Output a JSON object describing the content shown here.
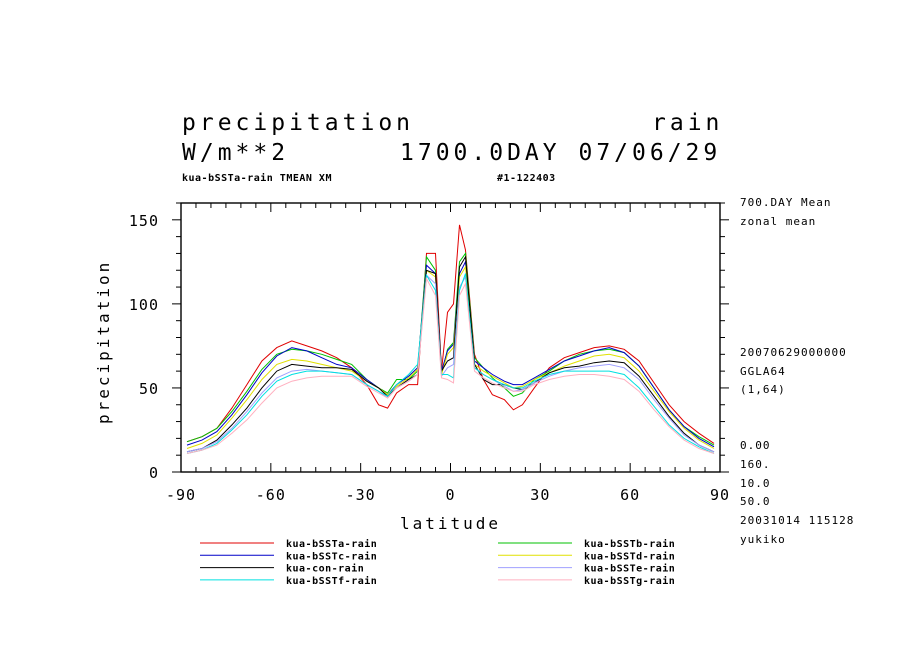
{
  "header": {
    "title_left": "precipitation",
    "title_right": "rain",
    "units": "W/m**2",
    "time_info": "1700.0DAY 07/06/29",
    "exp_label": "kua-bSSTa-rain TMEAN XM",
    "run_id": "#1-122403"
  },
  "side_info": {
    "mean_label": "700.DAY Mean",
    "mean_kind": "zonal mean",
    "date_code": "20070629000000",
    "grid": "GGLA64",
    "grid_index": "(1,64)",
    "range_min": "0.00",
    "range_max": "160.",
    "interval_1": "10.0",
    "interval_2": "50.0",
    "timestamp": "20031014 115128",
    "user": "yukiko"
  },
  "chart_data": {
    "type": "line",
    "xlabel": "latitude",
    "ylabel": "precipitation",
    "xlim": [
      -90,
      90
    ],
    "ylim": [
      0,
      160
    ],
    "xticks": [
      -90,
      -60,
      -30,
      0,
      30,
      60,
      90
    ],
    "yticks": [
      0,
      50,
      100,
      150
    ],
    "grid": false,
    "legend_position": "bottom",
    "x": [
      -88,
      -83,
      -78,
      -73,
      -68,
      -63,
      -58,
      -53,
      -48,
      -43,
      -38,
      -33,
      -28,
      -24,
      -21,
      -18,
      -14,
      -11,
      -8,
      -5,
      -3,
      -1,
      1,
      3,
      5,
      8,
      11,
      14,
      18,
      21,
      24,
      28,
      33,
      38,
      43,
      48,
      53,
      58,
      63,
      68,
      73,
      78,
      83,
      88
    ],
    "series": [
      {
        "name": "kua-bSSTa-rain",
        "color": "#e00000",
        "values": [
          18,
          21,
          26,
          38,
          52,
          66,
          74,
          78,
          75,
          72,
          68,
          62,
          52,
          40,
          38,
          47,
          52,
          52,
          130,
          130,
          60,
          95,
          100,
          147,
          132,
          70,
          55,
          46,
          43,
          37,
          40,
          50,
          62,
          68,
          71,
          74,
          75,
          73,
          66,
          53,
          40,
          30,
          23,
          17
        ]
      },
      {
        "name": "kua-bSSTb-rain",
        "color": "#00c000",
        "values": [
          18,
          21,
          26,
          36,
          48,
          61,
          70,
          73,
          72,
          70,
          67,
          64,
          55,
          50,
          47,
          55,
          55,
          60,
          128,
          120,
          58,
          73,
          77,
          125,
          130,
          68,
          62,
          56,
          50,
          45,
          47,
          55,
          60,
          66,
          70,
          72,
          73,
          71,
          63,
          50,
          37,
          27,
          21,
          16
        ]
      },
      {
        "name": "kua-bSSTc-rain",
        "color": "#0000c8",
        "values": [
          16,
          19,
          24,
          34,
          46,
          59,
          69,
          74,
          72,
          68,
          64,
          62,
          55,
          50,
          46,
          52,
          57,
          62,
          123,
          118,
          60,
          72,
          76,
          118,
          125,
          66,
          62,
          58,
          54,
          52,
          52,
          56,
          61,
          66,
          69,
          72,
          74,
          71,
          63,
          50,
          37,
          27,
          20,
          15
        ]
      },
      {
        "name": "kua-bSSTd-rain",
        "color": "#e0e000",
        "values": [
          14,
          17,
          22,
          32,
          43,
          55,
          64,
          67,
          66,
          64,
          62,
          60,
          54,
          50,
          46,
          51,
          56,
          61,
          120,
          116,
          58,
          70,
          74,
          116,
          122,
          64,
          60,
          57,
          53,
          50,
          51,
          55,
          59,
          63,
          66,
          69,
          70,
          68,
          60,
          48,
          36,
          26,
          19,
          14
        ]
      },
      {
        "name": "kua-con-rain",
        "color": "#000000",
        "values": [
          12,
          14,
          19,
          28,
          38,
          50,
          60,
          64,
          63,
          62,
          62,
          61,
          54,
          50,
          45,
          50,
          55,
          58,
          120,
          118,
          60,
          66,
          68,
          122,
          128,
          64,
          55,
          52,
          52,
          50,
          49,
          53,
          59,
          62,
          63,
          65,
          66,
          65,
          57,
          45,
          33,
          23,
          16,
          12
        ]
      },
      {
        "name": "kua-bSSTe-rain",
        "color": "#a0a0ff",
        "values": [
          12,
          14,
          18,
          26,
          36,
          47,
          56,
          60,
          61,
          60,
          59,
          58,
          52,
          48,
          44,
          50,
          54,
          58,
          117,
          112,
          57,
          62,
          64,
          110,
          116,
          62,
          58,
          55,
          51,
          48,
          49,
          53,
          57,
          60,
          62,
          63,
          64,
          62,
          55,
          43,
          32,
          22,
          16,
          12
        ]
      },
      {
        "name": "kua-bSSTf-rain",
        "color": "#00e0e0",
        "values": [
          11,
          13,
          17,
          25,
          34,
          45,
          54,
          58,
          60,
          60,
          59,
          58,
          52,
          48,
          45,
          52,
          58,
          64,
          117,
          108,
          58,
          58,
          56,
          108,
          118,
          62,
          58,
          55,
          52,
          50,
          50,
          54,
          58,
          60,
          60,
          60,
          60,
          58,
          50,
          39,
          28,
          20,
          15,
          11
        ]
      },
      {
        "name": "kua-bSSTg-rain",
        "color": "#ffb0c0",
        "values": [
          11,
          13,
          16,
          23,
          31,
          41,
          50,
          54,
          56,
          57,
          57,
          57,
          51,
          47,
          44,
          50,
          54,
          58,
          115,
          105,
          56,
          55,
          53,
          105,
          112,
          60,
          56,
          53,
          50,
          48,
          48,
          52,
          55,
          57,
          58,
          58,
          57,
          55,
          48,
          37,
          27,
          19,
          14,
          11
        ]
      }
    ]
  }
}
